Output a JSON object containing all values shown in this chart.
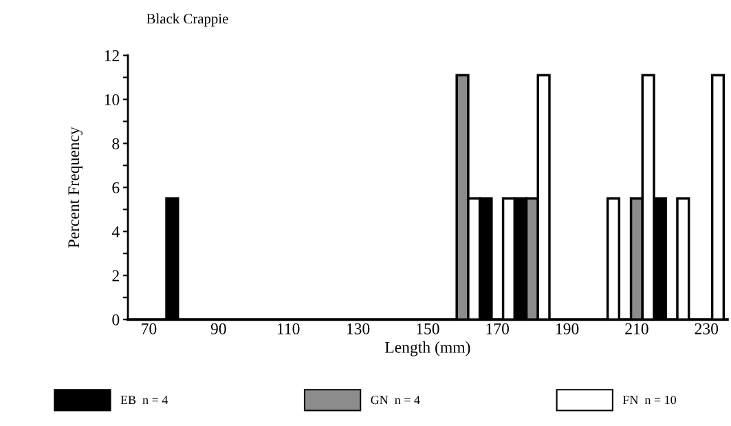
{
  "chart_data": {
    "type": "bar",
    "title": "Black Crappie",
    "xlabel": "Length (mm)",
    "ylabel": "Percent Frequency",
    "categories": [
      "70",
      null,
      "90",
      null,
      "110",
      null,
      "130",
      null,
      "150",
      null,
      "170",
      null,
      "190",
      null,
      "210",
      null,
      "230"
    ],
    "series": [
      {
        "name": "EB  n = 4",
        "color": "#000000",
        "values": [
          0,
          5.5,
          0,
          0,
          0,
          0,
          0,
          0,
          0,
          0,
          5.5,
          5.5,
          0,
          0,
          0,
          5.5,
          0
        ]
      },
      {
        "name": "GN  n = 4",
        "color": "#8c8c8c",
        "values": [
          0,
          0,
          0,
          0,
          0,
          0,
          0,
          0,
          0,
          11.1,
          0,
          5.5,
          0,
          0,
          5.5,
          0,
          0
        ]
      },
      {
        "name": "FN  n = 10",
        "color": "#ffffff",
        "values": [
          0,
          0,
          0,
          0,
          0,
          0,
          0,
          0,
          0,
          5.5,
          5.5,
          11.1,
          0,
          5.5,
          11.1,
          5.5,
          11.1
        ]
      }
    ],
    "ylim": [
      0,
      12
    ],
    "yticks": [
      0,
      {
        "value": 1,
        "label": null
      },
      2,
      {
        "value": 3,
        "label": null
      },
      4,
      {
        "value": 5,
        "label": null
      },
      6,
      {
        "value": 7,
        "label": null
      },
      8,
      {
        "value": 9,
        "label": null
      },
      10,
      {
        "value": 11,
        "label": null
      },
      12
    ],
    "grid": false,
    "legend": "bottom"
  }
}
